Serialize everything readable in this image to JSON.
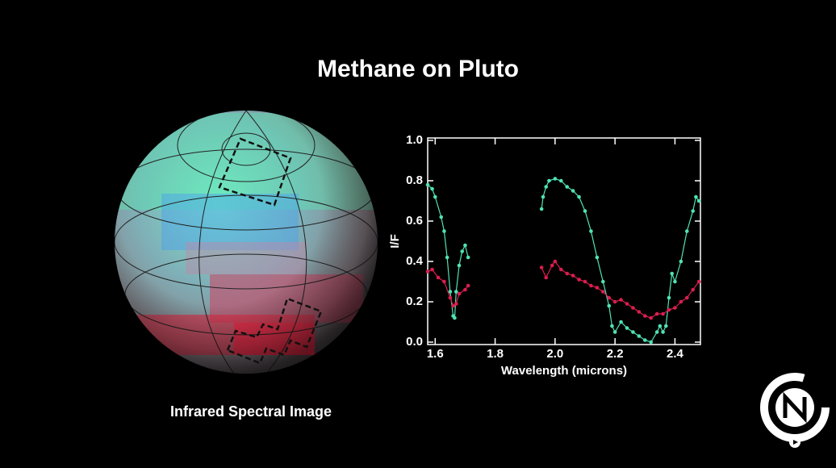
{
  "chart_data": {
    "type": "line",
    "title": "Methane on Pluto",
    "image_caption": "Infrared Spectral Image",
    "xlabel": "Wavelength (microns)",
    "ylabel": "I/F",
    "xlim": [
      1.575,
      2.485
    ],
    "ylim": [
      0,
      1
    ],
    "xticks": [
      1.6,
      1.8,
      {
        "value": 2,
        "label": "2.0"
      },
      2.2,
      2.4
    ],
    "yticks": [
      {
        "value": 0,
        "label": "0.0"
      },
      0.2,
      0.4,
      0.6,
      0.8,
      {
        "value": 1,
        "label": "1.0"
      }
    ],
    "series": [
      {
        "color": "#4fe3b4",
        "x": [
          1.575,
          1.59,
          1.6,
          1.62,
          1.63,
          1.64,
          1.65,
          1.66,
          1.665,
          1.67,
          1.68,
          1.69,
          1.7,
          1.71,
          1.83,
          1.955,
          1.96,
          1.97,
          1.98,
          2.0,
          2.02,
          2.04,
          2.06,
          2.08,
          2.1,
          2.12,
          2.14,
          2.16,
          2.18,
          2.19,
          2.2,
          2.22,
          2.24,
          2.26,
          2.28,
          2.3,
          2.32,
          2.34,
          2.35,
          2.36,
          2.37,
          2.38,
          2.39,
          2.4,
          2.42,
          2.44,
          2.46,
          2.47,
          2.48
        ],
        "values": [
          0.78,
          0.76,
          0.72,
          0.62,
          0.55,
          0.42,
          0.25,
          0.13,
          0.12,
          0.25,
          0.38,
          0.45,
          0.48,
          0.42,
          null,
          0.66,
          0.72,
          0.77,
          0.8,
          0.81,
          0.8,
          0.77,
          0.75,
          0.72,
          0.65,
          0.55,
          0.42,
          0.3,
          0.18,
          0.08,
          0.05,
          0.1,
          0.07,
          0.05,
          0.03,
          0.01,
          0,
          0.05,
          0.08,
          0.05,
          0.08,
          0.22,
          0.34,
          0.3,
          0.4,
          0.55,
          0.65,
          0.72,
          0.7
        ]
      },
      {
        "color": "#dc1d4e",
        "x": [
          1.575,
          1.59,
          1.61,
          1.63,
          1.65,
          1.66,
          1.67,
          1.68,
          1.7,
          1.71,
          1.83,
          1.955,
          1.97,
          1.99,
          2.0,
          2.02,
          2.04,
          2.06,
          2.08,
          2.1,
          2.12,
          2.14,
          2.16,
          2.18,
          2.2,
          2.22,
          2.24,
          2.26,
          2.28,
          2.3,
          2.32,
          2.34,
          2.36,
          2.38,
          2.4,
          2.42,
          2.44,
          2.46,
          2.48
        ],
        "values": [
          0.35,
          0.36,
          0.32,
          0.3,
          0.22,
          0.18,
          0.19,
          0.24,
          0.26,
          0.28,
          null,
          0.37,
          0.32,
          0.38,
          0.4,
          0.36,
          0.34,
          0.33,
          0.31,
          0.3,
          0.28,
          0.27,
          0.25,
          0.22,
          0.2,
          0.21,
          0.19,
          0.17,
          0.15,
          0.13,
          0.12,
          0.14,
          0.14,
          0.16,
          0.17,
          0.2,
          0.22,
          0.26,
          0.3
        ]
      }
    ]
  }
}
